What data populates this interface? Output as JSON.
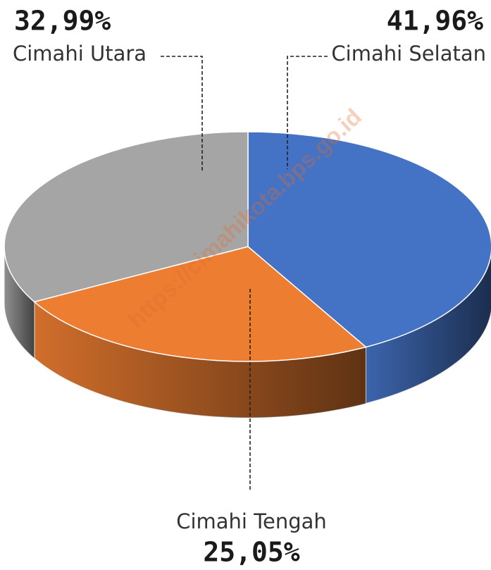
{
  "chart_data": {
    "type": "pie",
    "categories": [
      "Cimahi Selatan",
      "Cimahi Tengah",
      "Cimahi Utara"
    ],
    "values": [
      41.96,
      25.05,
      32.99
    ],
    "value_labels": [
      "41,96%",
      "25,05%",
      "32,99%"
    ],
    "colors": [
      "#4472c4",
      "#ed7d31",
      "#a5a5a5"
    ],
    "watermark": "https://cimahikota.bps.go.id"
  }
}
